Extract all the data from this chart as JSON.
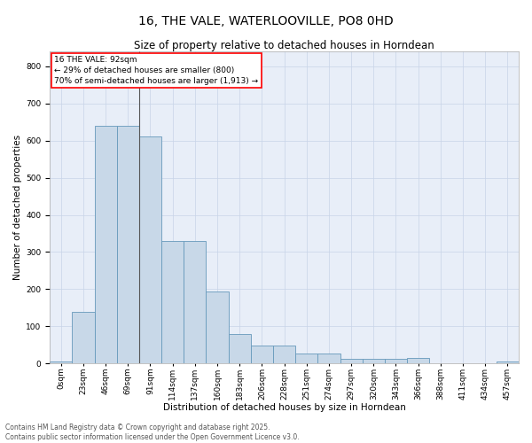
{
  "title_line1": "16, THE VALE, WATERLOOVILLE, PO8 0HD",
  "title_line2": "Size of property relative to detached houses in Horndean",
  "xlabel": "Distribution of detached houses by size in Horndean",
  "ylabel": "Number of detached properties",
  "bar_values": [
    5,
    140,
    640,
    640,
    610,
    330,
    330,
    195,
    80,
    48,
    48,
    27,
    27,
    12,
    12,
    12,
    14,
    0,
    0,
    0,
    5
  ],
  "bin_labels": [
    "0sqm",
    "23sqm",
    "46sqm",
    "69sqm",
    "91sqm",
    "114sqm",
    "137sqm",
    "160sqm",
    "183sqm",
    "206sqm",
    "228sqm",
    "251sqm",
    "274sqm",
    "297sqm",
    "320sqm",
    "343sqm",
    "366sqm",
    "388sqm",
    "411sqm",
    "434sqm",
    "457sqm"
  ],
  "bar_color": "#c8d8e8",
  "bar_edge_color": "#6699bb",
  "grid_color": "#c8d4e8",
  "background_color": "#e8eef8",
  "vline_x": 3.5,
  "vline_color": "#555555",
  "annotation_text": "16 THE VALE: 92sqm\n← 29% of detached houses are smaller (800)\n70% of semi-detached houses are larger (1,913) →",
  "annotation_fontsize": 6.5,
  "annotation_box_color": "white",
  "annotation_box_edgecolor": "red",
  "footer_text": "Contains HM Land Registry data © Crown copyright and database right 2025.\nContains public sector information licensed under the Open Government Licence v3.0.",
  "ylim": [
    0,
    840
  ],
  "yticks": [
    0,
    100,
    200,
    300,
    400,
    500,
    600,
    700,
    800
  ],
  "title_fontsize": 10,
  "subtitle_fontsize": 8.5,
  "xlabel_fontsize": 7.5,
  "ylabel_fontsize": 7.5,
  "tick_fontsize": 6.5,
  "footer_fontsize": 5.5
}
